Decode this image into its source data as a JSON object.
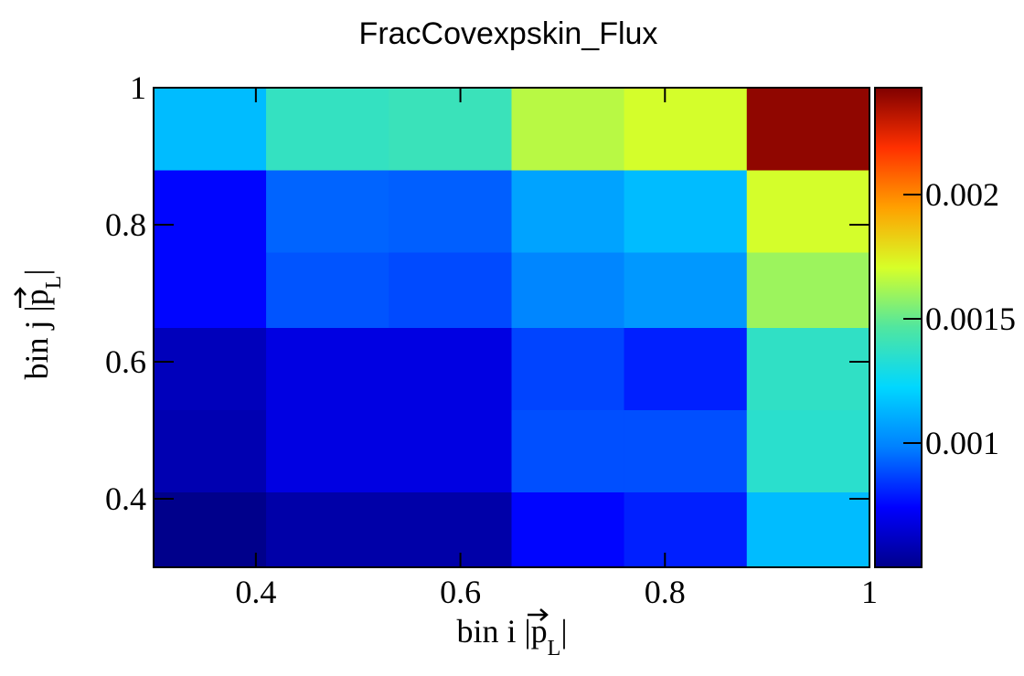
{
  "chart_data": {
    "type": "heatmap",
    "title": "FracCovexpskin_Flux",
    "xlabel": {
      "prefix": "bin i |",
      "symbol": "p",
      "subscript": "L",
      "suffix": "|"
    },
    "ylabel": {
      "prefix": "bin j |",
      "symbol": "p",
      "subscript": "L",
      "suffix": "|"
    },
    "x_edges": [
      0.3,
      0.41,
      0.53,
      0.65,
      0.76,
      0.88,
      1.0
    ],
    "y_edges": [
      0.3,
      0.41,
      0.53,
      0.65,
      0.76,
      0.88,
      1.0
    ],
    "xlim": [
      0.3,
      1.0
    ],
    "ylim": [
      0.3,
      1.0
    ],
    "x_ticks": [
      0.4,
      0.6,
      0.8,
      1.0
    ],
    "x_tick_labels": [
      "0.4",
      "0.6",
      "0.8",
      "1"
    ],
    "y_ticks": [
      0.4,
      0.6,
      0.8,
      1.0
    ],
    "y_tick_labels": [
      "0.4",
      "0.6",
      "0.8",
      "1"
    ],
    "values": [
      [
        0.0005,
        0.00056,
        0.00056,
        0.00075,
        0.0008,
        0.00115
      ],
      [
        0.00058,
        0.00068,
        0.00068,
        0.00089,
        0.00089,
        0.00135
      ],
      [
        0.0006,
        0.00068,
        0.00068,
        0.00087,
        0.0008,
        0.00137
      ],
      [
        0.00075,
        0.0009,
        0.00088,
        0.001,
        0.00105,
        0.0016
      ],
      [
        0.00075,
        0.00093,
        0.00092,
        0.00108,
        0.00115,
        0.0017
      ],
      [
        0.00115,
        0.00138,
        0.0014,
        0.00165,
        0.0017,
        0.0024
      ]
    ],
    "zlim": [
      0.0005,
      0.00243
    ],
    "colorbar_ticks": [
      0.001,
      0.0015,
      0.002
    ],
    "colorbar_tick_labels": [
      "0.001",
      "0.0015",
      "0.002"
    ],
    "colormap": [
      "#00008b",
      "#0000ff",
      "#0080ff",
      "#00d7ff",
      "#50e6a0",
      "#d7ff28",
      "#ffa000",
      "#ff3000",
      "#800000"
    ],
    "grid": false,
    "legend": "none"
  }
}
